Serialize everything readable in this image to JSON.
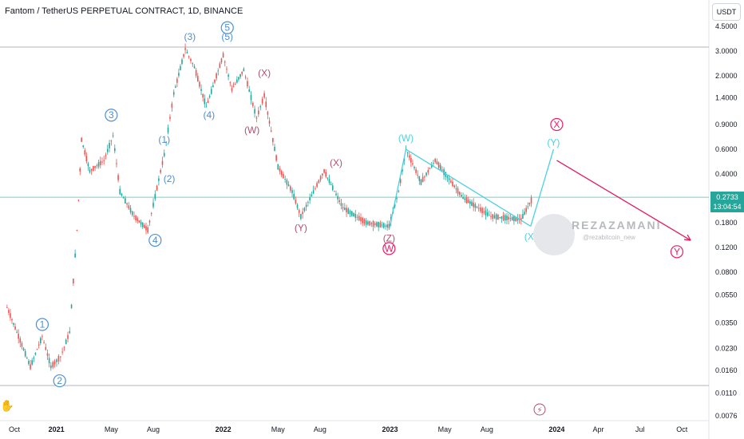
{
  "header": {
    "title": "Fantom / TetherUS PERPETUAL CONTRACT, 1D, BINANCE"
  },
  "axis": {
    "currency_label": "USDT"
  },
  "price_tag": {
    "price": "0.2733",
    "countdown": "13:04:54"
  },
  "watermark": {
    "name": "REZAZAMANI",
    "handle": "@rezabitcoin_new"
  },
  "colors": {
    "up": "#26a69a",
    "down": "#ef5350",
    "wave_blue": "#4a90d9",
    "wave_cyan": "#4dd0e1",
    "wave_pink": "#e91e63",
    "wave_mauve": "#b05070",
    "forecast_red": "#e5195e"
  },
  "chart_data": {
    "type": "line",
    "title": "Fantom / TetherUS PERPETUAL CONTRACT, 1D, BINANCE",
    "xlabel": "",
    "ylabel": "",
    "y_scale": "log",
    "ylim": [
      0.0076,
      4.5
    ],
    "y_ticks": [
      "4.5000",
      "3.0000",
      "2.0000",
      "1.4000",
      "0.9000",
      "0.6000",
      "0.4000",
      "0.2733",
      "0.1800",
      "0.1200",
      "0.0800",
      "0.0550",
      "0.0350",
      "0.0230",
      "0.0160",
      "0.0110",
      "0.0076"
    ],
    "x_ticks": [
      "Oct",
      "2021",
      "May",
      "Aug",
      "2022",
      "May",
      "Aug",
      "2023",
      "May",
      "Aug",
      "2024",
      "Apr",
      "Jul",
      "Oct"
    ],
    "x_tick_dates": [
      "2020-10-01",
      "2021-01-01",
      "2021-05-01",
      "2021-08-01",
      "2022-01-01",
      "2022-05-01",
      "2022-08-01",
      "2023-01-01",
      "2023-05-01",
      "2023-08-01",
      "2024-01-01",
      "2024-04-01",
      "2024-07-01",
      "2024-10-01"
    ],
    "series": [
      {
        "values": [
          {
            "x": "2020-09-15",
            "y": 0.045
          },
          {
            "x": "2020-10-10",
            "y": 0.028
          },
          {
            "x": "2020-11-05",
            "y": 0.017
          },
          {
            "x": "2020-12-01",
            "y": 0.028
          },
          {
            "x": "2020-12-20",
            "y": 0.017
          },
          {
            "x": "2021-01-10",
            "y": 0.02
          },
          {
            "x": "2021-01-30",
            "y": 0.03
          },
          {
            "x": "2021-02-15",
            "y": 0.16
          },
          {
            "x": "2021-02-25",
            "y": 0.7
          },
          {
            "x": "2021-03-15",
            "y": 0.42
          },
          {
            "x": "2021-04-15",
            "y": 0.5
          },
          {
            "x": "2021-05-05",
            "y": 0.75
          },
          {
            "x": "2021-05-20",
            "y": 0.3
          },
          {
            "x": "2021-06-20",
            "y": 0.2
          },
          {
            "x": "2021-07-20",
            "y": 0.16
          },
          {
            "x": "2021-08-25",
            "y": 0.55
          },
          {
            "x": "2021-09-15",
            "y": 1.5
          },
          {
            "x": "2021-10-10",
            "y": 3.1
          },
          {
            "x": "2021-10-30",
            "y": 2.3
          },
          {
            "x": "2021-11-25",
            "y": 1.2
          },
          {
            "x": "2022-01-01",
            "y": 2.8
          },
          {
            "x": "2022-01-20",
            "y": 1.6
          },
          {
            "x": "2022-02-15",
            "y": 2.2
          },
          {
            "x": "2022-03-15",
            "y": 1.0
          },
          {
            "x": "2022-04-01",
            "y": 1.45
          },
          {
            "x": "2022-05-01",
            "y": 0.45
          },
          {
            "x": "2022-06-01",
            "y": 0.3
          },
          {
            "x": "2022-06-20",
            "y": 0.2
          },
          {
            "x": "2022-08-10",
            "y": 0.42
          },
          {
            "x": "2022-09-20",
            "y": 0.23
          },
          {
            "x": "2022-11-10",
            "y": 0.18
          },
          {
            "x": "2022-12-30",
            "y": 0.17
          },
          {
            "x": "2023-01-20",
            "y": 0.3
          },
          {
            "x": "2023-02-05",
            "y": 0.6
          },
          {
            "x": "2023-03-10",
            "y": 0.35
          },
          {
            "x": "2023-04-10",
            "y": 0.5
          },
          {
            "x": "2023-06-10",
            "y": 0.27
          },
          {
            "x": "2023-08-10",
            "y": 0.2
          },
          {
            "x": "2023-10-15",
            "y": 0.19
          },
          {
            "x": "2023-11-10",
            "y": 0.2733
          }
        ]
      }
    ],
    "labels": [
      {
        "text": "(1)",
        "note": "blue circle",
        "x": "2020-12-01",
        "y": 0.034
      },
      {
        "text": "(2)",
        "note": "blue circle",
        "x": "2021-01-08",
        "y": 0.0135
      },
      {
        "text": "(3)",
        "note": "blue circle",
        "x": "2021-05-01",
        "y": 1.05
      },
      {
        "text": "(4)",
        "note": "blue circle",
        "x": "2021-08-05",
        "y": 0.135
      },
      {
        "text": "(5)",
        "note": "blue circle",
        "x": "2022-01-10",
        "y": 4.4
      },
      {
        "text": "(1)",
        "x": "2021-08-25",
        "y": 0.7
      },
      {
        "text": "(2)",
        "x": "2021-09-05",
        "y": 0.37
      },
      {
        "text": "(3)",
        "x": "2021-10-20",
        "y": 3.8
      },
      {
        "text": "(4)",
        "x": "2021-12-01",
        "y": 1.05
      },
      {
        "text": "(5)",
        "x": "2022-01-10",
        "y": 3.8
      },
      {
        "text": "(X)",
        "x": "2022-04-01",
        "y": 2.1
      },
      {
        "text": "(W)",
        "x": "2022-03-05",
        "y": 0.82
      },
      {
        "text": "(X)",
        "x": "2022-09-05",
        "y": 0.48
      },
      {
        "text": "(Y)",
        "x": "2022-06-20",
        "y": 0.165
      },
      {
        "text": "(Z)",
        "x": "2022-12-30",
        "y": 0.14
      },
      {
        "text": "(W)",
        "note": "pink circle",
        "x": "2022-12-30",
        "y": 0.118
      },
      {
        "text": "(W)",
        "x": "2023-02-05",
        "y": 0.72
      },
      {
        "text": "(X)",
        "x": "2023-11-05",
        "y": 0.143
      },
      {
        "text": "(Y)",
        "x": "2023-12-25",
        "y": 0.67
      },
      {
        "text": "(X)",
        "note": "pink circle",
        "x": "2024-01-01",
        "y": 0.9
      },
      {
        "text": "(Y)",
        "note": "pink circle",
        "x": "2024-09-20",
        "y": 0.112
      }
    ],
    "forecast_path": [
      {
        "x": "2023-11-20",
        "y": 0.2733
      },
      {
        "x": "2024-01-01",
        "y": 0.6
      },
      {
        "x": "2024-10-20",
        "y": 0.135
      }
    ],
    "horizontal_lines": [
      3.2,
      0.2733,
      0.0125
    ],
    "grid": false
  }
}
